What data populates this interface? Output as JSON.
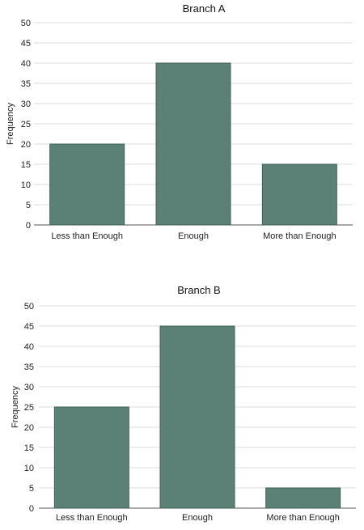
{
  "chart_data": [
    {
      "type": "bar",
      "title": "Branch A",
      "xlabel": "",
      "ylabel": "Frequency",
      "categories": [
        "Less than Enough",
        "Enough",
        "More than Enough"
      ],
      "values": [
        20,
        40,
        15
      ],
      "ylim": [
        0,
        50
      ],
      "yticks": [
        0,
        5,
        10,
        15,
        20,
        25,
        30,
        35,
        40,
        45,
        50
      ],
      "grid": true,
      "bar_color": "#5b8177"
    },
    {
      "type": "bar",
      "title": "Branch B",
      "xlabel": "",
      "ylabel": "Frequency",
      "categories": [
        "Less than Enough",
        "Enough",
        "More than Enough"
      ],
      "values": [
        25,
        45,
        5
      ],
      "ylim": [
        0,
        50
      ],
      "yticks": [
        0,
        5,
        10,
        15,
        20,
        25,
        30,
        35,
        40,
        45,
        50
      ],
      "grid": true,
      "bar_color": "#5b8177"
    }
  ]
}
